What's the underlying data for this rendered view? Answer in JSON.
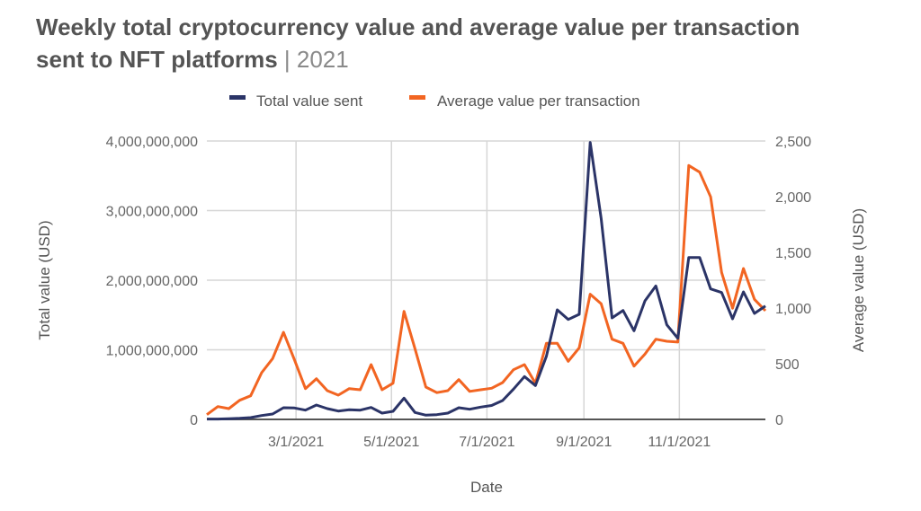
{
  "chart_data": {
    "type": "line",
    "title": "Weekly total cryptocurrency value and average value per transaction sent to NFT platforms",
    "subtitle": "2021",
    "xlabel": "Date",
    "ylabel_left": "Total value (USD)",
    "ylabel_right": "Average value (USD)",
    "x_start": "2021-01-03",
    "x_step_days": 7,
    "x_ticks": [
      "3/1/2021",
      "5/1/2021",
      "7/1/2021",
      "9/1/2021",
      "11/1/2021"
    ],
    "x_tick_dates": [
      "2021-03-01",
      "2021-05-01",
      "2021-07-01",
      "2021-09-01",
      "2021-11-01"
    ],
    "ylim_left": [
      0,
      4000000000
    ],
    "ylim_right": [
      0,
      2500
    ],
    "y_ticks_left": [
      "0",
      "1,000,000,000",
      "2,000,000,000",
      "3,000,000,000",
      "4,000,000,000"
    ],
    "y_ticks_right": [
      "0",
      "500",
      "1,000",
      "1,500",
      "2,000",
      "2,500"
    ],
    "grid": true,
    "legend_position": "top-center",
    "series": [
      {
        "name": "Total value sent",
        "axis": "left",
        "color": "#2b3467",
        "values": [
          5000000,
          5000000,
          10000000,
          15000000,
          26000000,
          55000000,
          77000000,
          168000000,
          164000000,
          133000000,
          206000000,
          155000000,
          120000000,
          138000000,
          133000000,
          172000000,
          90000000,
          116000000,
          306000000,
          99000000,
          61000000,
          68000000,
          90000000,
          168000000,
          146000000,
          177000000,
          200000000,
          271000000,
          435000000,
          615000000,
          486000000,
          907000000,
          1574000000,
          1436000000,
          1510000000,
          3980000000,
          2886000000,
          1458000000,
          1565000000,
          1273000000,
          1703000000,
          1918000000,
          1359000000,
          1165000000,
          2327000000,
          2327000000,
          1875000000,
          1823000000,
          1445000000,
          1832000000,
          1523000000,
          1630000000
        ]
      },
      {
        "name": "Average value per transaction",
        "axis": "right",
        "color": "#f26522",
        "values": [
          43,
          115,
          97,
          172,
          212,
          419,
          546,
          782,
          535,
          277,
          365,
          258,
          218,
          277,
          266,
          492,
          266,
          325,
          970,
          635,
          290,
          240,
          258,
          357,
          252,
          266,
          280,
          331,
          446,
          492,
          325,
          683,
          683,
          522,
          643,
          1124,
          1038,
          720,
          683,
          478,
          586,
          720,
          702,
          694,
          2280,
          2220,
          1998,
          1320,
          998,
          1355,
          1078,
          976
        ]
      }
    ]
  }
}
